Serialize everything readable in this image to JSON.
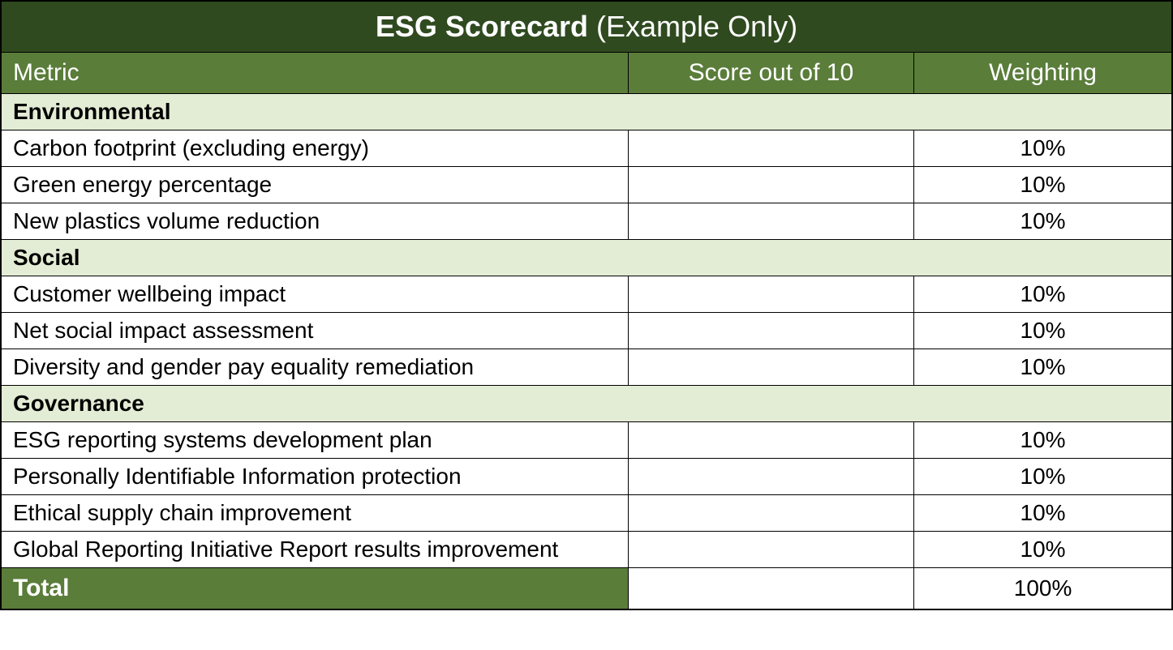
{
  "title": {
    "bold": "ESG Scorecard",
    "normal": " (Example Only)"
  },
  "columns": {
    "metric": "Metric",
    "score": "Score out of 10",
    "weighting": "Weighting"
  },
  "colors": {
    "title_bg": "#2f4a1f",
    "header_bg": "#5a7d3a",
    "category_bg": "#e3ecd4",
    "data_bg": "#ffffff",
    "total_label_bg": "#5a7d3a",
    "text_light": "#ffffff",
    "text_dark": "#000000",
    "border": "#000000"
  },
  "fontsize": {
    "title": 36,
    "header": 30,
    "body": 28,
    "total": 30
  },
  "categories": [
    {
      "name": "Environmental",
      "rows": [
        {
          "metric": "Carbon footprint (excluding energy)",
          "score": "",
          "weighting": "10%"
        },
        {
          "metric": "Green energy percentage",
          "score": "",
          "weighting": "10%"
        },
        {
          "metric": "New plastics volume reduction",
          "score": "",
          "weighting": "10%"
        }
      ]
    },
    {
      "name": "Social",
      "rows": [
        {
          "metric": "Customer wellbeing impact",
          "score": "",
          "weighting": "10%"
        },
        {
          "metric": "Net social impact assessment",
          "score": "",
          "weighting": "10%"
        },
        {
          "metric": "Diversity and gender pay equality remediation",
          "score": "",
          "weighting": "10%"
        }
      ]
    },
    {
      "name": "Governance",
      "rows": [
        {
          "metric": "ESG reporting systems development plan",
          "score": "",
          "weighting": "10%"
        },
        {
          "metric": "Personally Identifiable Information protection",
          "score": "",
          "weighting": "10%"
        },
        {
          "metric": "Ethical supply chain improvement",
          "score": "",
          "weighting": "10%"
        },
        {
          "metric": "Global Reporting Initiative Report results improvement",
          "score": "",
          "weighting": "10%"
        }
      ]
    }
  ],
  "total": {
    "label": "Total",
    "score": "",
    "weighting": "100%"
  },
  "column_widths": {
    "metric": 680,
    "score": 310,
    "weighting": 280
  }
}
